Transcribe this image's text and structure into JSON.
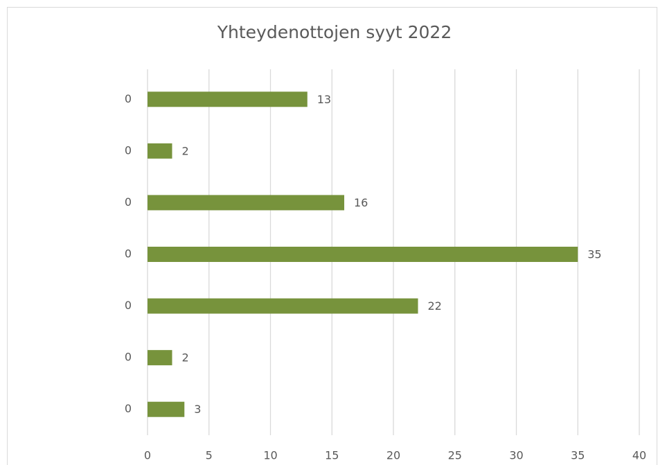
{
  "chart_data": {
    "type": "bar",
    "orientation": "horizontal",
    "title": "Yhteydenottojen syyt 2022",
    "categories": [
      "0",
      "0",
      "0",
      "0",
      "0",
      "0",
      "0"
    ],
    "values": [
      13,
      2,
      16,
      35,
      22,
      2,
      3
    ],
    "color": "#77933c",
    "xlim": [
      0,
      40
    ],
    "xticks": [
      0,
      5,
      10,
      15,
      20,
      25,
      30,
      35,
      40
    ],
    "grid": true
  }
}
